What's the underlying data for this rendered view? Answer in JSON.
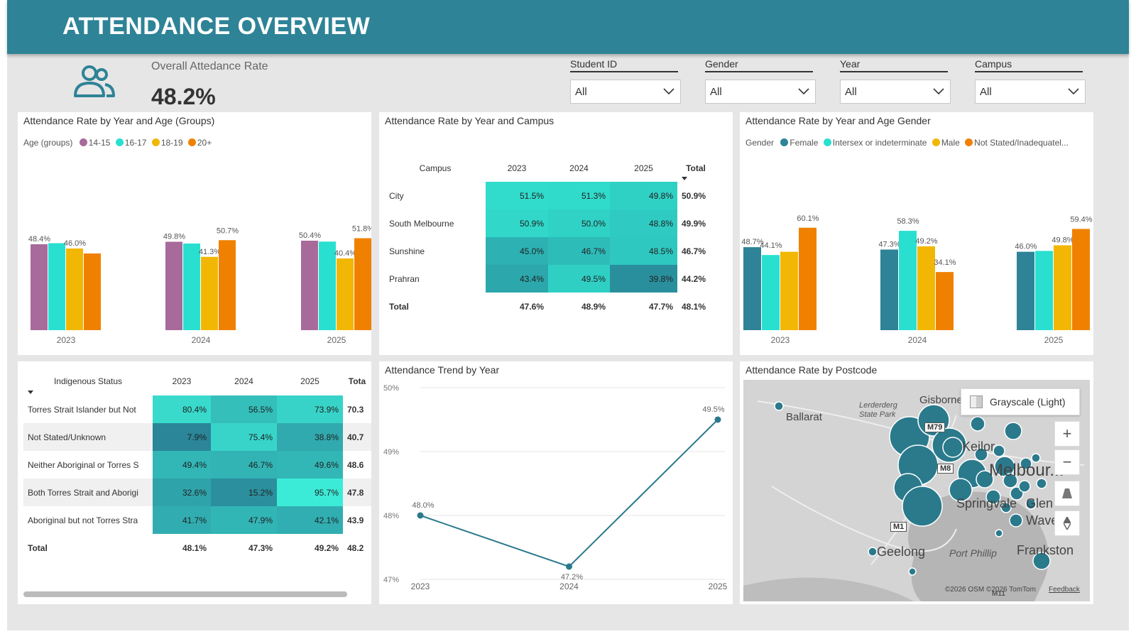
{
  "header": {
    "title": "ATTENDANCE OVERVIEW"
  },
  "kpi": {
    "label": "Overall Attedance Rate",
    "value": "48.2%",
    "icon": "people-icon"
  },
  "slicers": [
    {
      "label": "Student ID",
      "value": "All"
    },
    {
      "label": "Gender",
      "value": "All"
    },
    {
      "label": "Year",
      "value": "All"
    },
    {
      "label": "Campus",
      "value": "All"
    }
  ],
  "colors": {
    "teal_dark": "#2e8396",
    "teal": "#29e0d0",
    "yellow": "#f2b705",
    "orange": "#f08100",
    "purple": "#a86a9a",
    "header": "#2e8396"
  },
  "chart_data": [
    {
      "type": "bar",
      "title": "Attendance Rate by Year and Age (Groups)",
      "legend_title": "Age (groups)",
      "categories": [
        "2023",
        "2024",
        "2025"
      ],
      "series": [
        {
          "name": "14-15",
          "values": [
            48.4,
            49.8,
            50.4
          ],
          "color": "#a86a9a",
          "labels": [
            "48.4%",
            "49.8%",
            "50.4%"
          ]
        },
        {
          "name": "16-17",
          "values": [
            49.0,
            48.8,
            49.9
          ],
          "color": "#29e0d0",
          "labels": [
            "",
            "",
            ""
          ]
        },
        {
          "name": "18-19",
          "values": [
            46.0,
            41.3,
            40.4
          ],
          "color": "#f2b705",
          "labels": [
            "46.0%",
            "41.3%",
            "40.4%"
          ]
        },
        {
          "name": "20+",
          "values": [
            43.2,
            50.7,
            51.8
          ],
          "color": "#f08100",
          "labels": [
            "",
            "50.7%",
            "51.8%"
          ]
        }
      ],
      "ylim": [
        0,
        75
      ]
    },
    {
      "type": "table",
      "title": "Attendance Rate by Year and Campus",
      "columns": [
        "Campus",
        "2023",
        "2024",
        "2025",
        "Total"
      ],
      "rows": [
        {
          "label": "City",
          "values": [
            "51.5%",
            "51.3%",
            "49.8%"
          ],
          "total": "50.9%"
        },
        {
          "label": "South Melbourne",
          "values": [
            "50.9%",
            "50.0%",
            "48.8%"
          ],
          "total": "49.9%"
        },
        {
          "label": "Sunshine",
          "values": [
            "45.0%",
            "46.7%",
            "48.5%"
          ],
          "total": "46.7%"
        },
        {
          "label": "Prahran",
          "values": [
            "43.4%",
            "49.5%",
            "39.8%"
          ],
          "total": "44.2%"
        }
      ],
      "total_row": {
        "label": "Total",
        "values": [
          "47.6%",
          "48.9%",
          "47.7%"
        ],
        "total": "48.1%"
      }
    },
    {
      "type": "bar",
      "title": "Attendance Rate by Year and Age Gender",
      "legend_title": "Gender",
      "categories": [
        "2023",
        "2024",
        "2025"
      ],
      "series": [
        {
          "name": "Female",
          "values": [
            48.7,
            47.3,
            46.0
          ],
          "color": "#2e8396",
          "labels": [
            "48.7%",
            "47.3%",
            "46.0%"
          ]
        },
        {
          "name": "Intersex or indeterminate",
          "values": [
            44.1,
            58.3,
            46.5
          ],
          "color": "#29e0d0",
          "labels": [
            "44.1%",
            "58.3%",
            ""
          ]
        },
        {
          "name": "Male",
          "values": [
            46.0,
            49.2,
            49.8
          ],
          "color": "#f2b705",
          "labels": [
            "",
            "49.2%",
            "49.8%"
          ]
        },
        {
          "name": "Not Stated/Inadequatel...",
          "values": [
            60.1,
            34.1,
            59.4
          ],
          "color": "#f08100",
          "labels": [
            "60.1%",
            "34.1%",
            "59.4%"
          ]
        }
      ],
      "ylim": [
        0,
        75
      ]
    },
    {
      "type": "table",
      "title": "",
      "columns": [
        "Indigenous Status",
        "2023",
        "2024",
        "2025",
        "Tota"
      ],
      "rows": [
        {
          "label": "Torres Strait Islander but Not",
          "values": [
            "80.4%",
            "56.5%",
            "73.9%"
          ],
          "total": "70.3"
        },
        {
          "label": "Not Stated/Unknown",
          "values": [
            "7.9%",
            "75.4%",
            "38.8%"
          ],
          "total": "40.7"
        },
        {
          "label": "Neither Aboriginal or Torres S",
          "values": [
            "49.4%",
            "46.7%",
            "49.6%"
          ],
          "total": "48.6"
        },
        {
          "label": "Both Torres Strait and Aborigi",
          "values": [
            "32.6%",
            "15.2%",
            "95.7%"
          ],
          "total": "47.8"
        },
        {
          "label": "Aboriginal but not Torres Stra",
          "values": [
            "41.7%",
            "47.9%",
            "42.1%"
          ],
          "total": "43.9"
        }
      ],
      "total_row": {
        "label": "Total",
        "values": [
          "48.1%",
          "47.3%",
          "49.2%"
        ],
        "total": "48.2"
      }
    },
    {
      "type": "line",
      "title": "Attendance Trend by Year",
      "x": [
        "2023",
        "2024",
        "2025"
      ],
      "y": [
        48.0,
        47.2,
        49.5
      ],
      "labels": [
        "48.0%",
        "47.2%",
        "49.5%"
      ],
      "yticks": [
        "50%",
        "49%",
        "48%",
        "47%"
      ],
      "ylim": [
        47,
        50
      ],
      "grid": true
    }
  ],
  "map": {
    "title": "Attendance Rate by Postcode",
    "style_label": "Grayscale (Light)",
    "places": [
      "Ballarat",
      "Lerderderg\nState Park",
      "Gisborne",
      "Keilor",
      "Melbour...",
      "Springvale",
      "Glen",
      "Wave",
      "Geelong",
      "Port Phillip",
      "Frankston"
    ],
    "roads": [
      "M79",
      "M8",
      "M1",
      "M11"
    ],
    "attribution": "©2026 OSM  ©2026 TomTom",
    "feedback": "Feedback",
    "zoom_in": "+",
    "zoom_out": "−"
  }
}
